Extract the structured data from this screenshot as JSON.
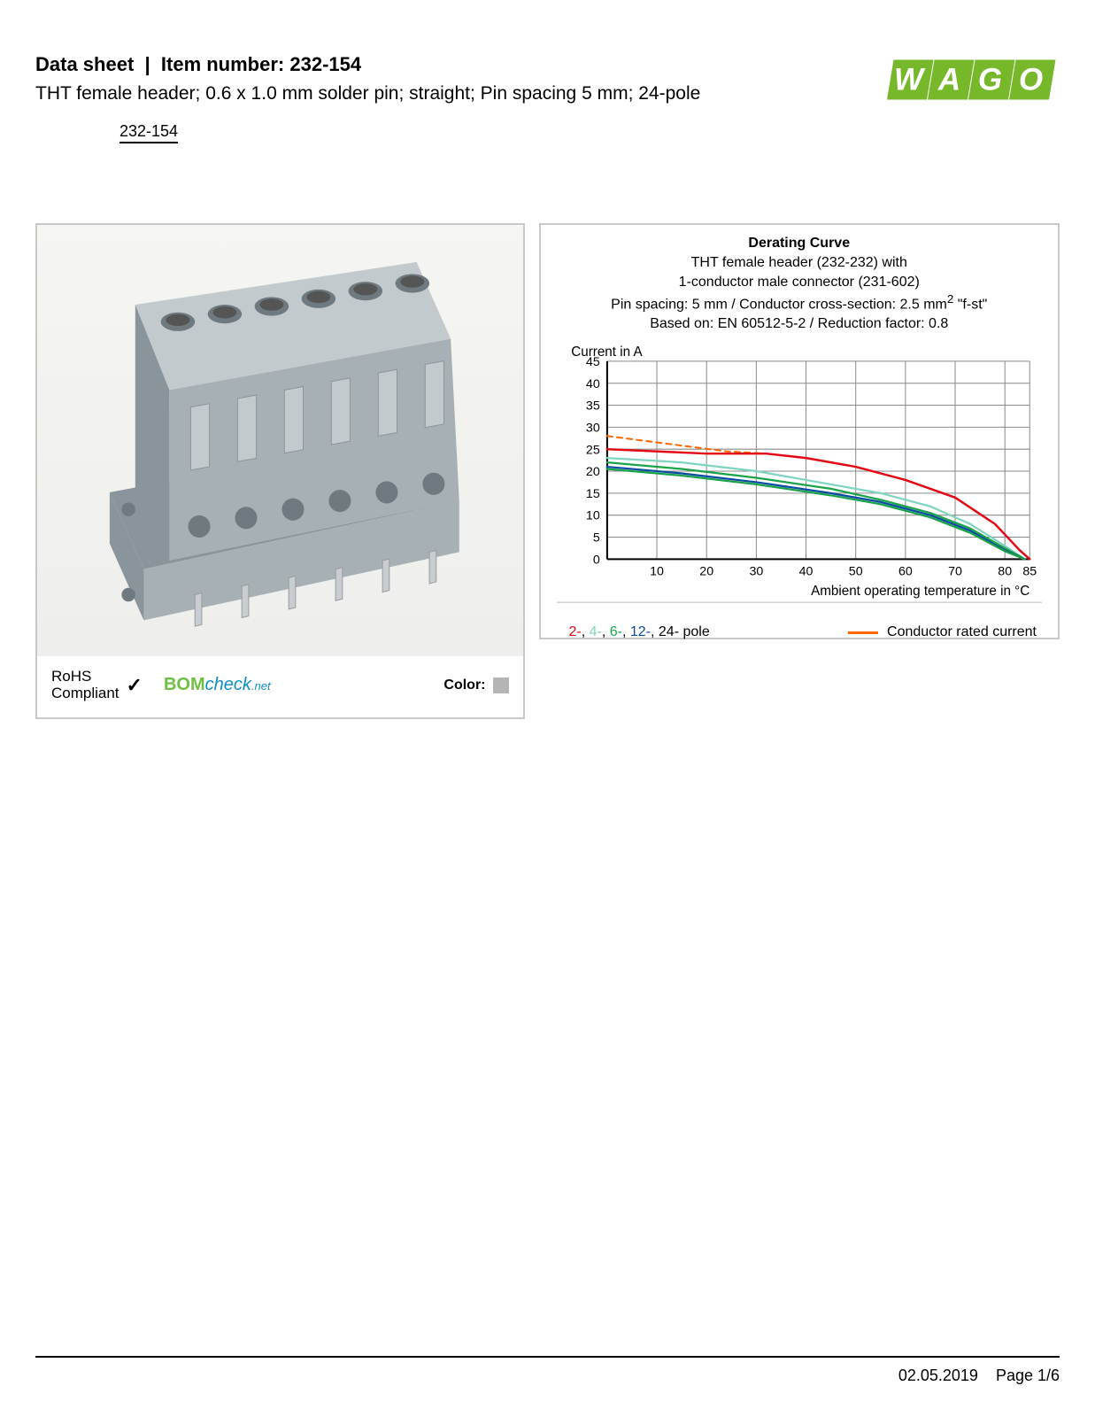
{
  "header": {
    "datasheet_label": "Data sheet",
    "item_label": "Item number:",
    "item_number": "232-154",
    "subtitle": "THT female header; 0.6 x 1.0 mm solder pin; straight; Pin spacing 5 mm; 24-pole",
    "code_underlined": "232-154"
  },
  "logo": {
    "text": "WAGO",
    "fill": "#76b82a",
    "shadow": "#5a8f20"
  },
  "compliance": {
    "rohs_line1": "RoHS",
    "rohs_line2": "Compliant",
    "bom": "BOM",
    "check": "check",
    "net": ".net",
    "color_label": "Color:",
    "swatch_color": "#b5b5b5"
  },
  "product_render": {
    "body_color": "#a7b0b5",
    "body_shadow": "#8a959b",
    "body_light": "#c3cacd",
    "hole_color": "#6f7a80",
    "pin_color": "#c7cdd0",
    "background_top": "#f5f5f2",
    "background_bottom": "#e9e9e6"
  },
  "chart": {
    "title": "Derating Curve",
    "sub1": "THT female header (232-232) with",
    "sub2": "1-conductor male connector (231-602)",
    "sub3_a": "Pin spacing: 5 mm / Conductor cross-section: 2.5 mm",
    "sub3_sup": "2",
    "sub3_b": " \"f-st\"",
    "sub4": "Based on: EN 60512-5-2 / Reduction factor: 0.8",
    "ylabel": "Current in A",
    "xlabel": "Ambient operating temperature in °C",
    "ylim": [
      0,
      45
    ],
    "xlim": [
      0,
      85
    ],
    "ytick_step": 5,
    "xticks": [
      10,
      20,
      30,
      40,
      50,
      60,
      70,
      80,
      85
    ],
    "grid_color": "#8a8a8a",
    "axis_color": "#000000",
    "background": "#ffffff",
    "series": [
      {
        "name": "conductor_rated",
        "color": "#ff6600",
        "dash": "6,5",
        "width": 2,
        "points": [
          [
            0,
            28
          ],
          [
            24,
            24.5
          ],
          [
            32,
            24
          ]
        ]
      },
      {
        "name": "2-pole",
        "color": "#e30613",
        "width": 2.4,
        "points": [
          [
            0,
            25
          ],
          [
            20,
            24
          ],
          [
            32,
            24
          ],
          [
            40,
            23
          ],
          [
            50,
            21
          ],
          [
            60,
            18
          ],
          [
            70,
            14
          ],
          [
            78,
            8
          ],
          [
            83,
            2
          ],
          [
            85,
            0
          ]
        ]
      },
      {
        "name": "4-pole",
        "color": "#7fd4c1",
        "width": 2.2,
        "points": [
          [
            0,
            23
          ],
          [
            15,
            22
          ],
          [
            30,
            20
          ],
          [
            45,
            17
          ],
          [
            55,
            15
          ],
          [
            65,
            12
          ],
          [
            73,
            8
          ],
          [
            80,
            3
          ],
          [
            84,
            0
          ]
        ]
      },
      {
        "name": "6-pole",
        "color": "#1aa34a",
        "width": 2.2,
        "points": [
          [
            0,
            22
          ],
          [
            15,
            20.5
          ],
          [
            30,
            18.5
          ],
          [
            45,
            16
          ],
          [
            55,
            13.5
          ],
          [
            65,
            10.5
          ],
          [
            73,
            7
          ],
          [
            80,
            2.5
          ],
          [
            84,
            0
          ]
        ]
      },
      {
        "name": "12-pole",
        "color": "#0b4aa2",
        "width": 2.2,
        "points": [
          [
            0,
            21
          ],
          [
            15,
            19.5
          ],
          [
            30,
            17.5
          ],
          [
            45,
            15
          ],
          [
            55,
            13
          ],
          [
            65,
            10
          ],
          [
            73,
            6.5
          ],
          [
            80,
            2
          ],
          [
            84,
            0
          ]
        ]
      },
      {
        "name": "24-pole",
        "color": "#19a24b",
        "width": 2.2,
        "points": [
          [
            0,
            20.5
          ],
          [
            15,
            19
          ],
          [
            30,
            17
          ],
          [
            45,
            14.5
          ],
          [
            55,
            12.5
          ],
          [
            65,
            9.5
          ],
          [
            73,
            6
          ],
          [
            80,
            1.8
          ],
          [
            84,
            0
          ]
        ]
      }
    ],
    "legend_poles": [
      {
        "label": "2-",
        "color": "#e30613"
      },
      {
        "label": "4-",
        "color": "#7fd4c1"
      },
      {
        "label": "6-",
        "color": "#1aa34a"
      },
      {
        "label": "12-",
        "color": "#0b4aa2"
      },
      {
        "label": "24-",
        "color": "#000000"
      }
    ],
    "legend_pole_suffix": " pole",
    "legend_conductor": "Conductor rated current"
  },
  "footer": {
    "date": "02.05.2019",
    "page": "Page 1/6"
  }
}
